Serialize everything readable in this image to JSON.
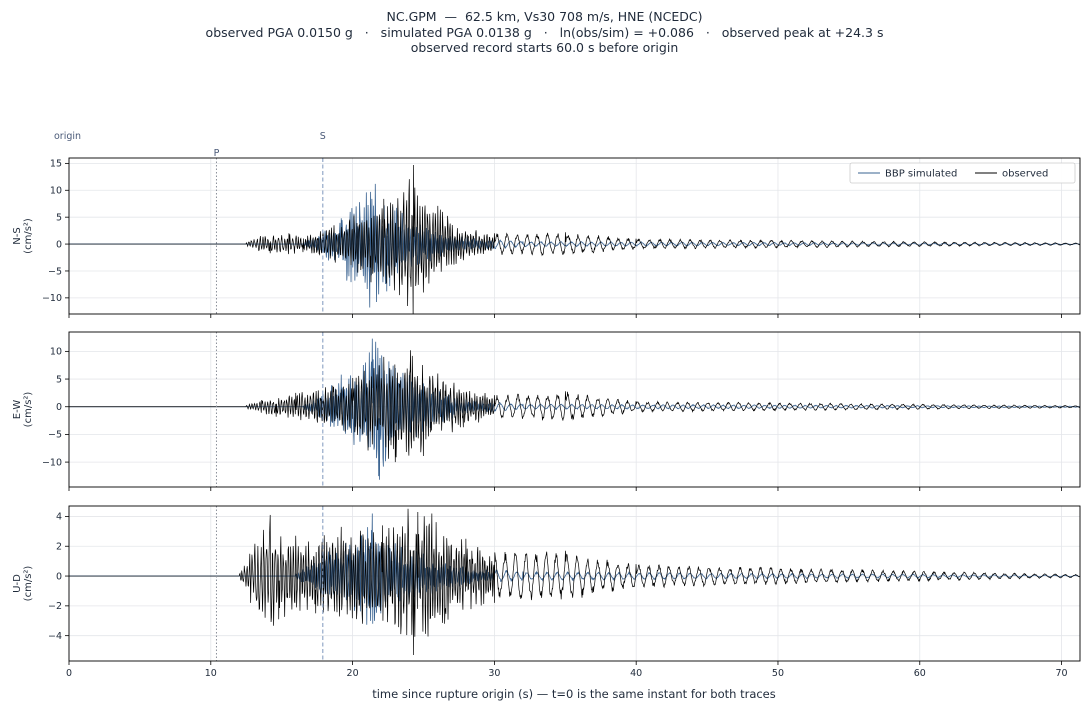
{
  "title": {
    "line1": "NC.GPM  —  62.5 km, Vs30 708 m/s, HNE (NCEDC)",
    "line2": "observed PGA 0.0150 g   ·   simulated PGA 0.0138 g   ·   ln(obs/sim) = +0.086   ·   observed peak at +24.3 s",
    "line3": "observed record starts 60.0 s before origin"
  },
  "colors": {
    "simulated": "#3a6391",
    "observed": "#000000",
    "p_marker": "#8a8f99",
    "s_marker": "#7f98bd",
    "grid": "#e4e6ea"
  },
  "chart_data": {
    "type": "line",
    "xlabel": "time since rupture origin (s)   —   t=0 is the same instant for both traces",
    "xlim": [
      0,
      71.3
    ],
    "x_ticks": [
      0,
      10,
      20,
      30,
      40,
      50,
      60,
      70
    ],
    "markers": [
      {
        "label": "origin",
        "t": 0
      },
      {
        "label": "P",
        "t": 10.4
      },
      {
        "label": "S",
        "t": 17.9
      }
    ],
    "legend": {
      "placement": "top-right",
      "entries": [
        {
          "label": "BBP simulated",
          "series": "simulated"
        },
        {
          "label": "observed",
          "series": "observed"
        }
      ]
    },
    "panels": [
      {
        "component": "N-S",
        "ylabel_line1": "N-S",
        "ylabel_line2": "(cm/s²)",
        "ylim": [
          -13,
          16
        ],
        "y_ticks": [
          -10,
          -5,
          0,
          5,
          10,
          15
        ],
        "observed_peaks": [
          {
            "t": 12.5,
            "v": 0.3
          },
          {
            "t": 13.5,
            "v": 1.5
          },
          {
            "t": 14.2,
            "v": -1.7
          },
          {
            "t": 15.5,
            "v": 2.0
          },
          {
            "t": 16.5,
            "v": -1.5
          },
          {
            "t": 18.7,
            "v": 3.5
          },
          {
            "t": 20.1,
            "v": 5.3
          },
          {
            "t": 21.3,
            "v": -7.1
          },
          {
            "t": 22.2,
            "v": 8.4
          },
          {
            "t": 23.3,
            "v": -9.5
          },
          {
            "t": 24.3,
            "v": 14.7
          },
          {
            "t": 25.0,
            "v": -9.0
          },
          {
            "t": 26.0,
            "v": 7.1
          },
          {
            "t": 27.8,
            "v": -3.0
          },
          {
            "t": 30.0,
            "v": 2.0
          },
          {
            "t": 35.0,
            "v": 2.2
          },
          {
            "t": 40.0,
            "v": 1.0
          },
          {
            "t": 71.3,
            "v": 0.2
          }
        ],
        "simulated_peaks": [
          {
            "t": 16.5,
            "v": 0.3
          },
          {
            "t": 17.9,
            "v": 2.3
          },
          {
            "t": 19.2,
            "v": 4.8
          },
          {
            "t": 19.6,
            "v": -6.8
          },
          {
            "t": 20.5,
            "v": 7.8
          },
          {
            "t": 21.2,
            "v": -11.8
          },
          {
            "t": 21.6,
            "v": 11.2
          },
          {
            "t": 22.4,
            "v": -8.8
          },
          {
            "t": 23.5,
            "v": 5.8
          },
          {
            "t": 25.5,
            "v": -3.2
          },
          {
            "t": 28.0,
            "v": 1.3
          },
          {
            "t": 32.0,
            "v": 0.5
          },
          {
            "t": 71.3,
            "v": 0.1
          }
        ]
      },
      {
        "component": "E-W",
        "ylabel_line1": "E-W",
        "ylabel_line2": "(cm/s²)",
        "ylim": [
          -14.5,
          13.5
        ],
        "y_ticks": [
          -10,
          -5,
          0,
          5,
          10
        ],
        "observed_peaks": [
          {
            "t": 12.5,
            "v": 0.3
          },
          {
            "t": 13.6,
            "v": 1.2
          },
          {
            "t": 14.6,
            "v": -1.8
          },
          {
            "t": 16.0,
            "v": 2.5
          },
          {
            "t": 18.6,
            "v": 3.8
          },
          {
            "t": 20.0,
            "v": 5.2
          },
          {
            "t": 21.1,
            "v": -7.9
          },
          {
            "t": 22.2,
            "v": 9.0
          },
          {
            "t": 23.0,
            "v": -10.0
          },
          {
            "t": 24.1,
            "v": 10.2
          },
          {
            "t": 25.0,
            "v": -8.9
          },
          {
            "t": 26.0,
            "v": 6.0
          },
          {
            "t": 27.8,
            "v": -3.7
          },
          {
            "t": 30.0,
            "v": 2.1
          },
          {
            "t": 35.0,
            "v": 2.8
          },
          {
            "t": 40.0,
            "v": 1.0
          },
          {
            "t": 71.3,
            "v": 0.2
          }
        ],
        "simulated_peaks": [
          {
            "t": 16.5,
            "v": 0.3
          },
          {
            "t": 17.9,
            "v": 2.3
          },
          {
            "t": 19.2,
            "v": 5.8
          },
          {
            "t": 20.1,
            "v": -6.9
          },
          {
            "t": 20.9,
            "v": 8.0
          },
          {
            "t": 21.4,
            "v": 12.3
          },
          {
            "t": 21.9,
            "v": -13.2
          },
          {
            "t": 23.0,
            "v": 7.0
          },
          {
            "t": 24.5,
            "v": -5.5
          },
          {
            "t": 26.0,
            "v": 3.2
          },
          {
            "t": 28.0,
            "v": 1.3
          },
          {
            "t": 32.0,
            "v": 0.5
          },
          {
            "t": 71.3,
            "v": 0.1
          }
        ]
      },
      {
        "component": "U-D",
        "ylabel_line1": "U-D",
        "ylabel_line2": "(cm/s²)",
        "ylim": [
          -5.7,
          4.7
        ],
        "y_ticks": [
          -4,
          -2,
          0,
          2,
          4
        ],
        "observed_peaks": [
          {
            "t": 12.0,
            "v": 0.2
          },
          {
            "t": 12.8,
            "v": -1.8
          },
          {
            "t": 13.7,
            "v": 3.1
          },
          {
            "t": 14.2,
            "v": 4.1
          },
          {
            "t": 14.8,
            "v": -2.9
          },
          {
            "t": 16.0,
            "v": 2.7
          },
          {
            "t": 17.4,
            "v": -2.5
          },
          {
            "t": 19.2,
            "v": 3.3
          },
          {
            "t": 20.7,
            "v": -3.2
          },
          {
            "t": 22.1,
            "v": 3.4
          },
          {
            "t": 23.4,
            "v": -3.9
          },
          {
            "t": 24.3,
            "v": -5.3
          },
          {
            "t": 24.6,
            "v": 4.3
          },
          {
            "t": 25.6,
            "v": 4.2
          },
          {
            "t": 26.5,
            "v": -3.2
          },
          {
            "t": 28.0,
            "v": 2.5
          },
          {
            "t": 30.0,
            "v": -1.8
          },
          {
            "t": 35.0,
            "v": 1.7
          },
          {
            "t": 40.0,
            "v": 0.8
          },
          {
            "t": 71.3,
            "v": 0.1
          }
        ],
        "simulated_peaks": [
          {
            "t": 16.0,
            "v": 0.2
          },
          {
            "t": 17.9,
            "v": 1.5
          },
          {
            "t": 19.5,
            "v": 2.2
          },
          {
            "t": 20.6,
            "v": 2.7
          },
          {
            "t": 21.4,
            "v": 4.2
          },
          {
            "t": 22.0,
            "v": -2.5
          },
          {
            "t": 23.0,
            "v": 2.2
          },
          {
            "t": 25.0,
            "v": 1.5
          },
          {
            "t": 28.0,
            "v": 0.6
          },
          {
            "t": 32.0,
            "v": 0.3
          },
          {
            "t": 71.3,
            "v": 0.05
          }
        ]
      }
    ]
  }
}
